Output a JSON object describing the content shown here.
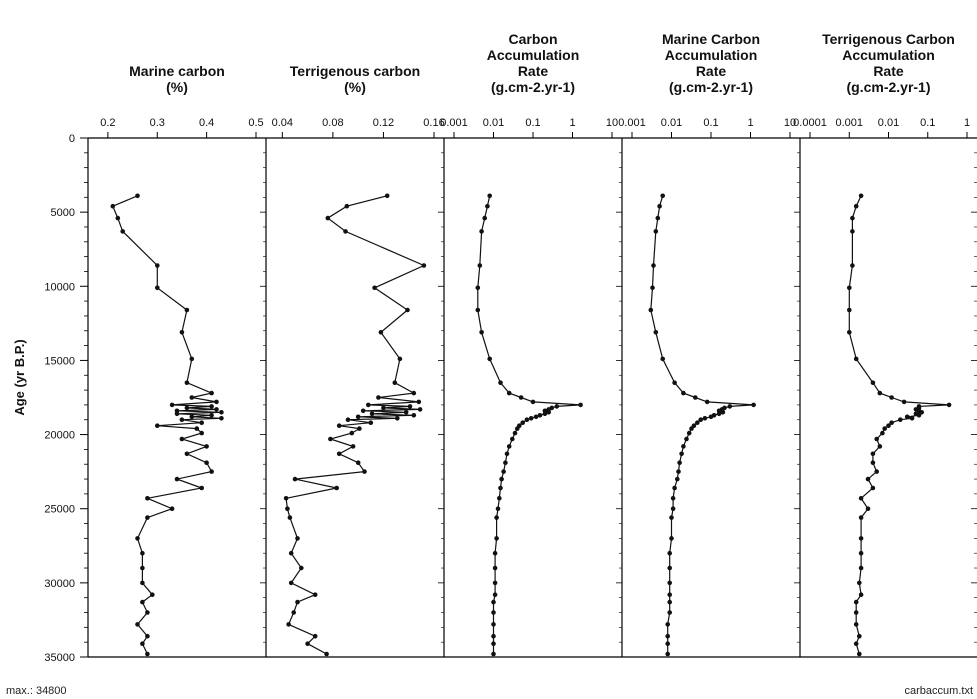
{
  "footer": {
    "left": "max.: 34800",
    "right": "carbaccum.txt"
  },
  "chart_data": {
    "type": "line",
    "ylabel": "Age (yr B.P.)",
    "ylim": [
      0,
      35000
    ],
    "y_ticks": [
      0,
      5000,
      10000,
      15000,
      20000,
      25000,
      30000,
      35000
    ],
    "y_inverted": true,
    "grid": false,
    "y": [
      3900,
      4600,
      5400,
      6300,
      8600,
      10100,
      11600,
      13100,
      14900,
      16500,
      17200,
      17500,
      17800,
      18000,
      18100,
      18200,
      18300,
      18400,
      18500,
      18600,
      18700,
      18800,
      18900,
      19000,
      19200,
      19400,
      19600,
      19900,
      20300,
      20800,
      21300,
      21900,
      22500,
      23000,
      23600,
      24300,
      25000,
      25600,
      27000,
      28000,
      29000,
      30000,
      30800,
      31300,
      32000,
      32800,
      33600,
      34100,
      34800
    ],
    "panels": [
      {
        "title": [
          "Marine carbon",
          "(%)"
        ],
        "scale": "linear",
        "xlim": [
          0.18,
          0.5
        ],
        "ticks": [
          0.2,
          0.3,
          0.4,
          0.5
        ],
        "tick_labels": [
          "0.2",
          "0.3",
          "0.4",
          "0.5"
        ],
        "values": [
          0.26,
          0.21,
          0.22,
          0.23,
          0.3,
          0.3,
          0.36,
          0.35,
          0.37,
          0.36,
          0.41,
          0.37,
          0.42,
          0.33,
          0.41,
          0.36,
          0.42,
          0.34,
          0.43,
          0.34,
          0.41,
          0.37,
          0.43,
          0.35,
          0.39,
          0.3,
          0.38,
          0.39,
          0.35,
          0.4,
          0.36,
          0.4,
          0.41,
          0.34,
          0.39,
          0.28,
          0.33,
          0.28,
          0.26,
          0.27,
          0.27,
          0.27,
          0.29,
          0.27,
          0.28,
          0.26,
          0.28,
          0.27,
          0.28
        ]
      },
      {
        "title": [
          "Terrigenous carbon",
          "(%)"
        ],
        "scale": "linear",
        "xlim": [
          0.035,
          0.16
        ],
        "ticks": [
          0.04,
          0.08,
          0.12,
          0.16
        ],
        "tick_labels": [
          "0.04",
          "0.08",
          "0.12",
          "0.16"
        ],
        "values": [
          0.123,
          0.091,
          0.076,
          0.09,
          0.152,
          0.113,
          0.139,
          0.118,
          0.133,
          0.129,
          0.144,
          0.116,
          0.148,
          0.108,
          0.141,
          0.12,
          0.149,
          0.104,
          0.138,
          0.111,
          0.144,
          0.1,
          0.131,
          0.092,
          0.11,
          0.085,
          0.101,
          0.095,
          0.078,
          0.096,
          0.085,
          0.1,
          0.105,
          0.05,
          0.083,
          0.043,
          0.044,
          0.046,
          0.052,
          0.047,
          0.055,
          0.047,
          0.066,
          0.052,
          0.049,
          0.045,
          0.066,
          0.06,
          0.075
        ]
      },
      {
        "title": [
          "Carbon",
          "Accumulation",
          "Rate",
          "(g.cm-2.yr-1)"
        ],
        "scale": "log",
        "xlim": [
          0.001,
          10
        ],
        "ticks": [
          0.001,
          0.01,
          0.1,
          1,
          10
        ],
        "tick_labels": [
          "0.001",
          "0.01",
          "0.1",
          "1",
          "10"
        ],
        "values": [
          0.008,
          0.007,
          0.006,
          0.005,
          0.0045,
          0.004,
          0.004,
          0.005,
          0.008,
          0.015,
          0.025,
          0.05,
          0.1,
          1.6,
          0.4,
          0.3,
          0.25,
          0.2,
          0.25,
          0.2,
          0.15,
          0.12,
          0.09,
          0.07,
          0.055,
          0.045,
          0.04,
          0.035,
          0.03,
          0.025,
          0.022,
          0.02,
          0.018,
          0.016,
          0.015,
          0.014,
          0.013,
          0.012,
          0.012,
          0.011,
          0.011,
          0.011,
          0.011,
          0.01,
          0.01,
          0.01,
          0.01,
          0.01,
          0.01
        ]
      },
      {
        "title": [
          "Marine Carbon",
          "Accumulation",
          "Rate",
          "(g.cm-2.yr-1)"
        ],
        "scale": "log",
        "xlim": [
          0.001,
          10
        ],
        "ticks": [
          0.001,
          0.01,
          0.1,
          1,
          10
        ],
        "tick_labels": [
          "0.001",
          "0.01",
          "0.1",
          "1",
          "10"
        ],
        "values": [
          0.006,
          0.005,
          0.0045,
          0.004,
          0.0035,
          0.0033,
          0.003,
          0.004,
          0.006,
          0.012,
          0.02,
          0.04,
          0.08,
          1.2,
          0.3,
          0.22,
          0.19,
          0.16,
          0.2,
          0.16,
          0.12,
          0.1,
          0.07,
          0.055,
          0.045,
          0.037,
          0.032,
          0.028,
          0.024,
          0.02,
          0.018,
          0.016,
          0.015,
          0.014,
          0.012,
          0.011,
          0.011,
          0.01,
          0.01,
          0.009,
          0.009,
          0.009,
          0.009,
          0.009,
          0.009,
          0.008,
          0.008,
          0.008,
          0.008
        ]
      },
      {
        "title": [
          "Terrigenous Carbon",
          "Accumulation",
          "Rate",
          "(g.cm-2.yr-1)"
        ],
        "scale": "log",
        "xlim": [
          0.0001,
          1
        ],
        "ticks": [
          0.0001,
          0.001,
          0.01,
          0.1,
          1
        ],
        "tick_labels": [
          "0.0001",
          "0.001",
          "0.01",
          "0.1",
          "1"
        ],
        "values": [
          0.002,
          0.0015,
          0.0012,
          0.0012,
          0.0012,
          0.001,
          0.001,
          0.001,
          0.0015,
          0.004,
          0.006,
          0.012,
          0.025,
          0.35,
          0.06,
          0.06,
          0.05,
          0.06,
          0.07,
          0.05,
          0.06,
          0.03,
          0.04,
          0.02,
          0.012,
          0.01,
          0.008,
          0.007,
          0.005,
          0.006,
          0.004,
          0.004,
          0.005,
          0.003,
          0.004,
          0.002,
          0.003,
          0.002,
          0.002,
          0.002,
          0.002,
          0.0018,
          0.002,
          0.0015,
          0.0015,
          0.0015,
          0.0018,
          0.0015,
          0.0018
        ]
      }
    ]
  }
}
